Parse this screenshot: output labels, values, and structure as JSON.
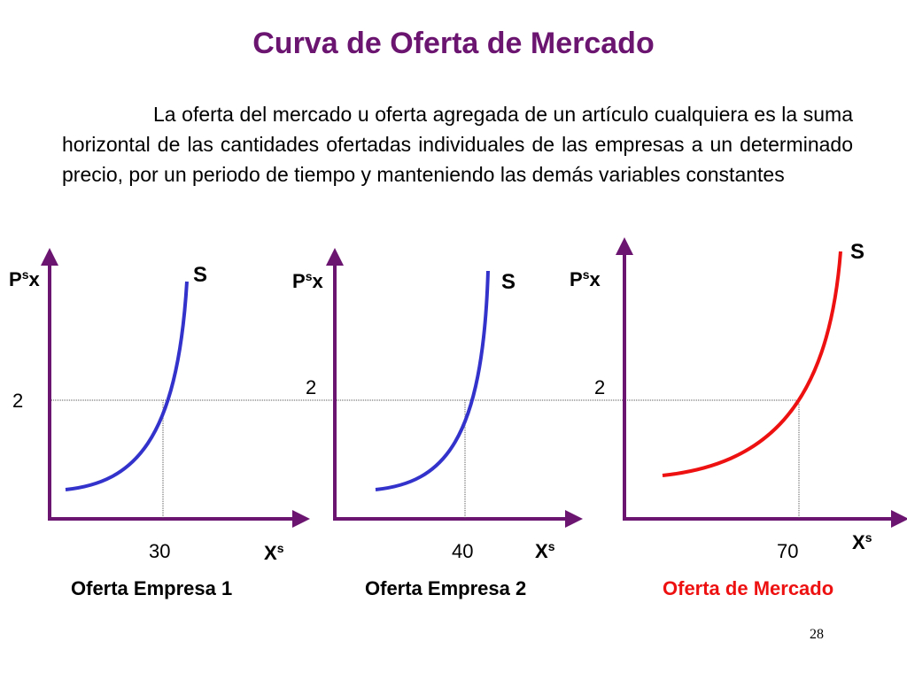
{
  "title": "Curva de Oferta de  Mercado",
  "description": "La oferta del mercado u oferta agregada de un artículo cualquiera es la suma horizontal de las cantidades ofertadas individuales de las empresas a un determinado precio, por un periodo de tiempo y manteniendo las demás variables constantes",
  "colors": {
    "title": "#6b1470",
    "axis": "#6b1470",
    "firm_curve": "#3333cc",
    "market_curve": "#ee1111",
    "market_label": "#ee1111"
  },
  "price_level": "2",
  "charts": [
    {
      "y_label": "P",
      "y_label_sup": "s",
      "y_label_tail": "x",
      "curve_label": "S",
      "price_label": "2",
      "quantity_label": "30",
      "x_label": "X",
      "x_label_sup": "s",
      "caption": "Oferta Empresa  1"
    },
    {
      "y_label": "P",
      "y_label_sup": "s",
      "y_label_tail": "x",
      "curve_label": "S",
      "price_label": "2",
      "quantity_label": "40",
      "x_label": "X",
      "x_label_sup": "s",
      "caption": "Oferta Empresa  2"
    },
    {
      "y_label": "P",
      "y_label_sup": "s",
      "y_label_tail": "x",
      "curve_label": "S",
      "price_label": "2",
      "quantity_label": "70",
      "x_label": "X",
      "x_label_sup": "s",
      "caption": "Oferta de Mercado"
    }
  ],
  "slide_number": "28"
}
